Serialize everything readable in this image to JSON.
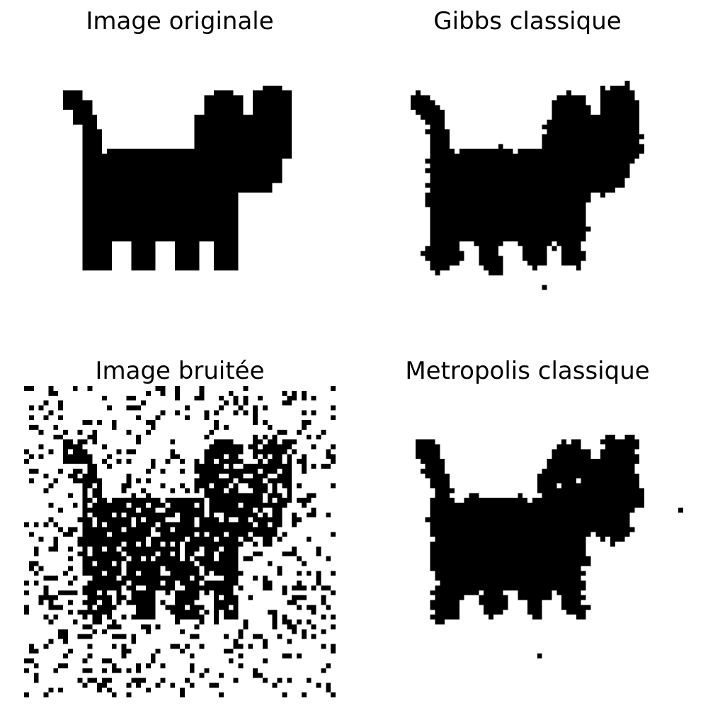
{
  "panels": {
    "original": {
      "title": "Image originale"
    },
    "gibbs": {
      "title": "Gibbs classique"
    },
    "noisy": {
      "title": "Image bruitée"
    },
    "metropolis": {
      "title": "Metropolis classique"
    }
  },
  "colors": {
    "foreground": "#000000",
    "background": "#ffffff"
  }
}
